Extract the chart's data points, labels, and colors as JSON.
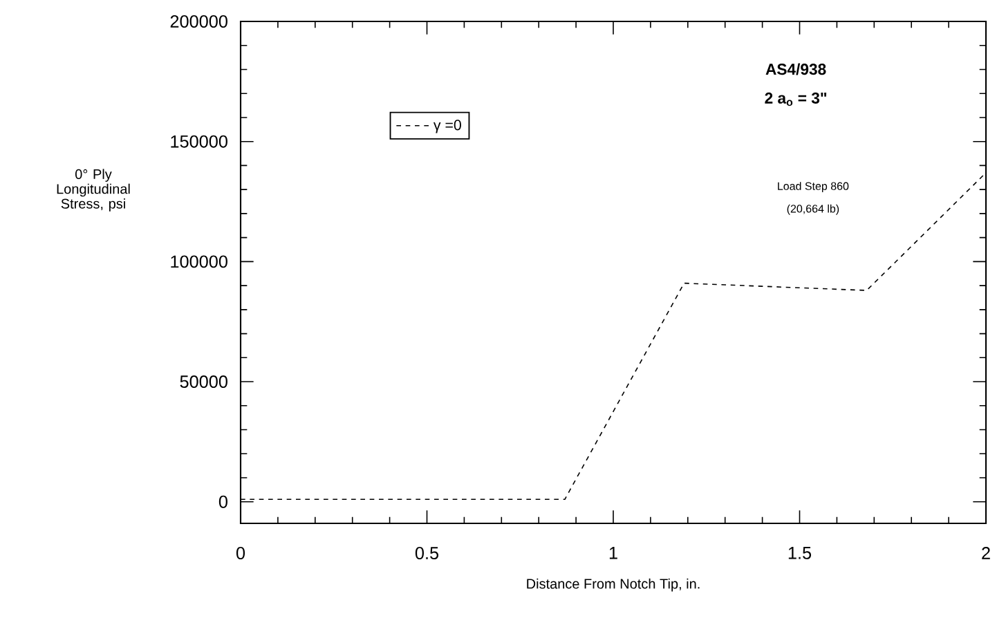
{
  "chart_data": {
    "type": "line",
    "xlabel": "Distance From Notch Tip, in.",
    "ylabel": "0° Ply Longitudinal Stress, psi",
    "x": [
      0,
      0.87,
      1.19,
      1.68,
      2
    ],
    "series": [
      {
        "name": "γ =0",
        "color": "#000000",
        "values": [
          1000,
          1000,
          91000,
          88000,
          137000
        ]
      }
    ],
    "xlim": [
      0,
      2
    ],
    "ylim": [
      -9000,
      200000
    ],
    "xticks": [
      0,
      0.5,
      1,
      1.5,
      2
    ],
    "yticks": [
      0,
      50000,
      100000,
      150000,
      200000
    ],
    "annotations": [
      "AS4/938",
      "2 a$_{o}$ = 3\"",
      "Load Step 860",
      "(20,664 lb)"
    ],
    "legend": "top left",
    "line_style": "dashed",
    "marker": "none"
  }
}
